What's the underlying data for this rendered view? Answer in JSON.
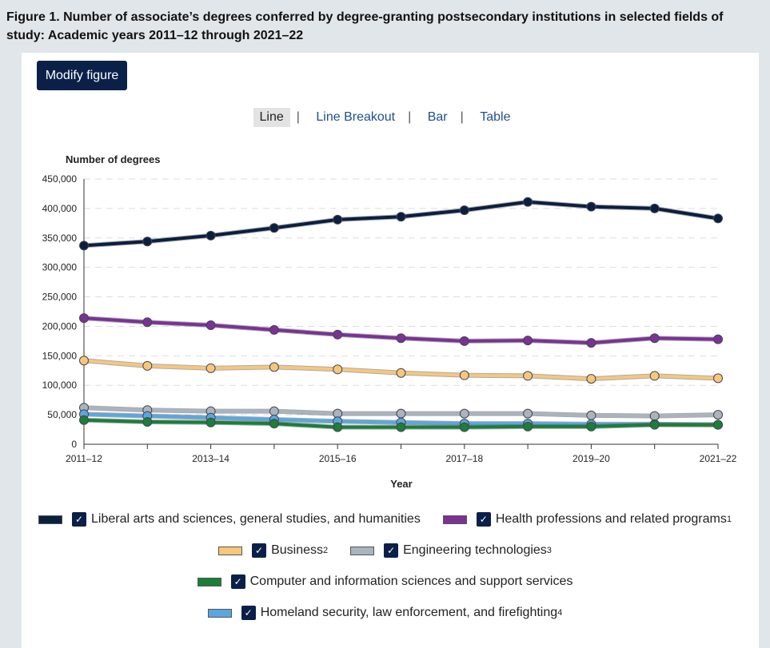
{
  "title": "Figure 1. Number of associate’s degrees conferred by degree-granting postsecondary institutions in selected fields of study: Academic years 2011–12 through 2021–22",
  "modify_label": "Modify figure",
  "tabs": [
    "Line",
    "Line Breakout",
    "Bar",
    "Table"
  ],
  "chart_data": {
    "type": "line",
    "ylabel": "Number of degrees",
    "xlabel": "Year",
    "ylim": [
      0,
      450000
    ],
    "yticks": [
      "0",
      "50,000",
      "100,000",
      "150,000",
      "200,000",
      "250,000",
      "300,000",
      "350,000",
      "400,000",
      "450,000"
    ],
    "x": [
      "2011–12",
      "2012–13",
      "2013–14",
      "2014–15",
      "2015–16",
      "2016–17",
      "2017–18",
      "2018–19",
      "2019–20",
      "2020–21",
      "2021–22"
    ],
    "xticklabels": [
      "2011–12",
      "",
      "2013–14",
      "",
      "2015–16",
      "",
      "2017–18",
      "",
      "2019–20",
      "",
      "2021–22"
    ],
    "series": [
      {
        "name": "Liberal arts and sciences, general studies, and humanities",
        "sup": "",
        "color": "#0b1f3f",
        "values": [
          337000,
          344000,
          354000,
          367000,
          381000,
          386000,
          397000,
          411000,
          403000,
          400000,
          383000
        ]
      },
      {
        "name": "Health professions and related programs",
        "sup": "1",
        "color": "#7b3294",
        "values": [
          214000,
          207000,
          202000,
          194000,
          186000,
          180000,
          175000,
          176000,
          172000,
          180000,
          178000
        ]
      },
      {
        "name": "Business",
        "sup": "2",
        "color": "#f6c77a",
        "values": [
          142000,
          133000,
          129000,
          131000,
          127000,
          121000,
          117000,
          116000,
          111000,
          116000,
          112000
        ]
      },
      {
        "name": "Engineering technologies",
        "sup": "3",
        "color": "#aab4bb",
        "values": [
          62000,
          58000,
          56000,
          56000,
          52000,
          52000,
          52000,
          52000,
          49000,
          48000,
          50000
        ]
      },
      {
        "name": "Computer and information sciences and support services",
        "sup": "",
        "color": "#1a7f37",
        "values": [
          41000,
          38000,
          37000,
          35000,
          29000,
          29000,
          29000,
          30000,
          30000,
          33000,
          33000
        ]
      },
      {
        "name": "Homeland security, law enforcement, and firefighting",
        "sup": "4",
        "color": "#5aa7e0",
        "values": [
          51000,
          48000,
          45000,
          42000,
          39000,
          37000,
          35000,
          35000,
          34000,
          34000,
          33000
        ]
      }
    ]
  }
}
